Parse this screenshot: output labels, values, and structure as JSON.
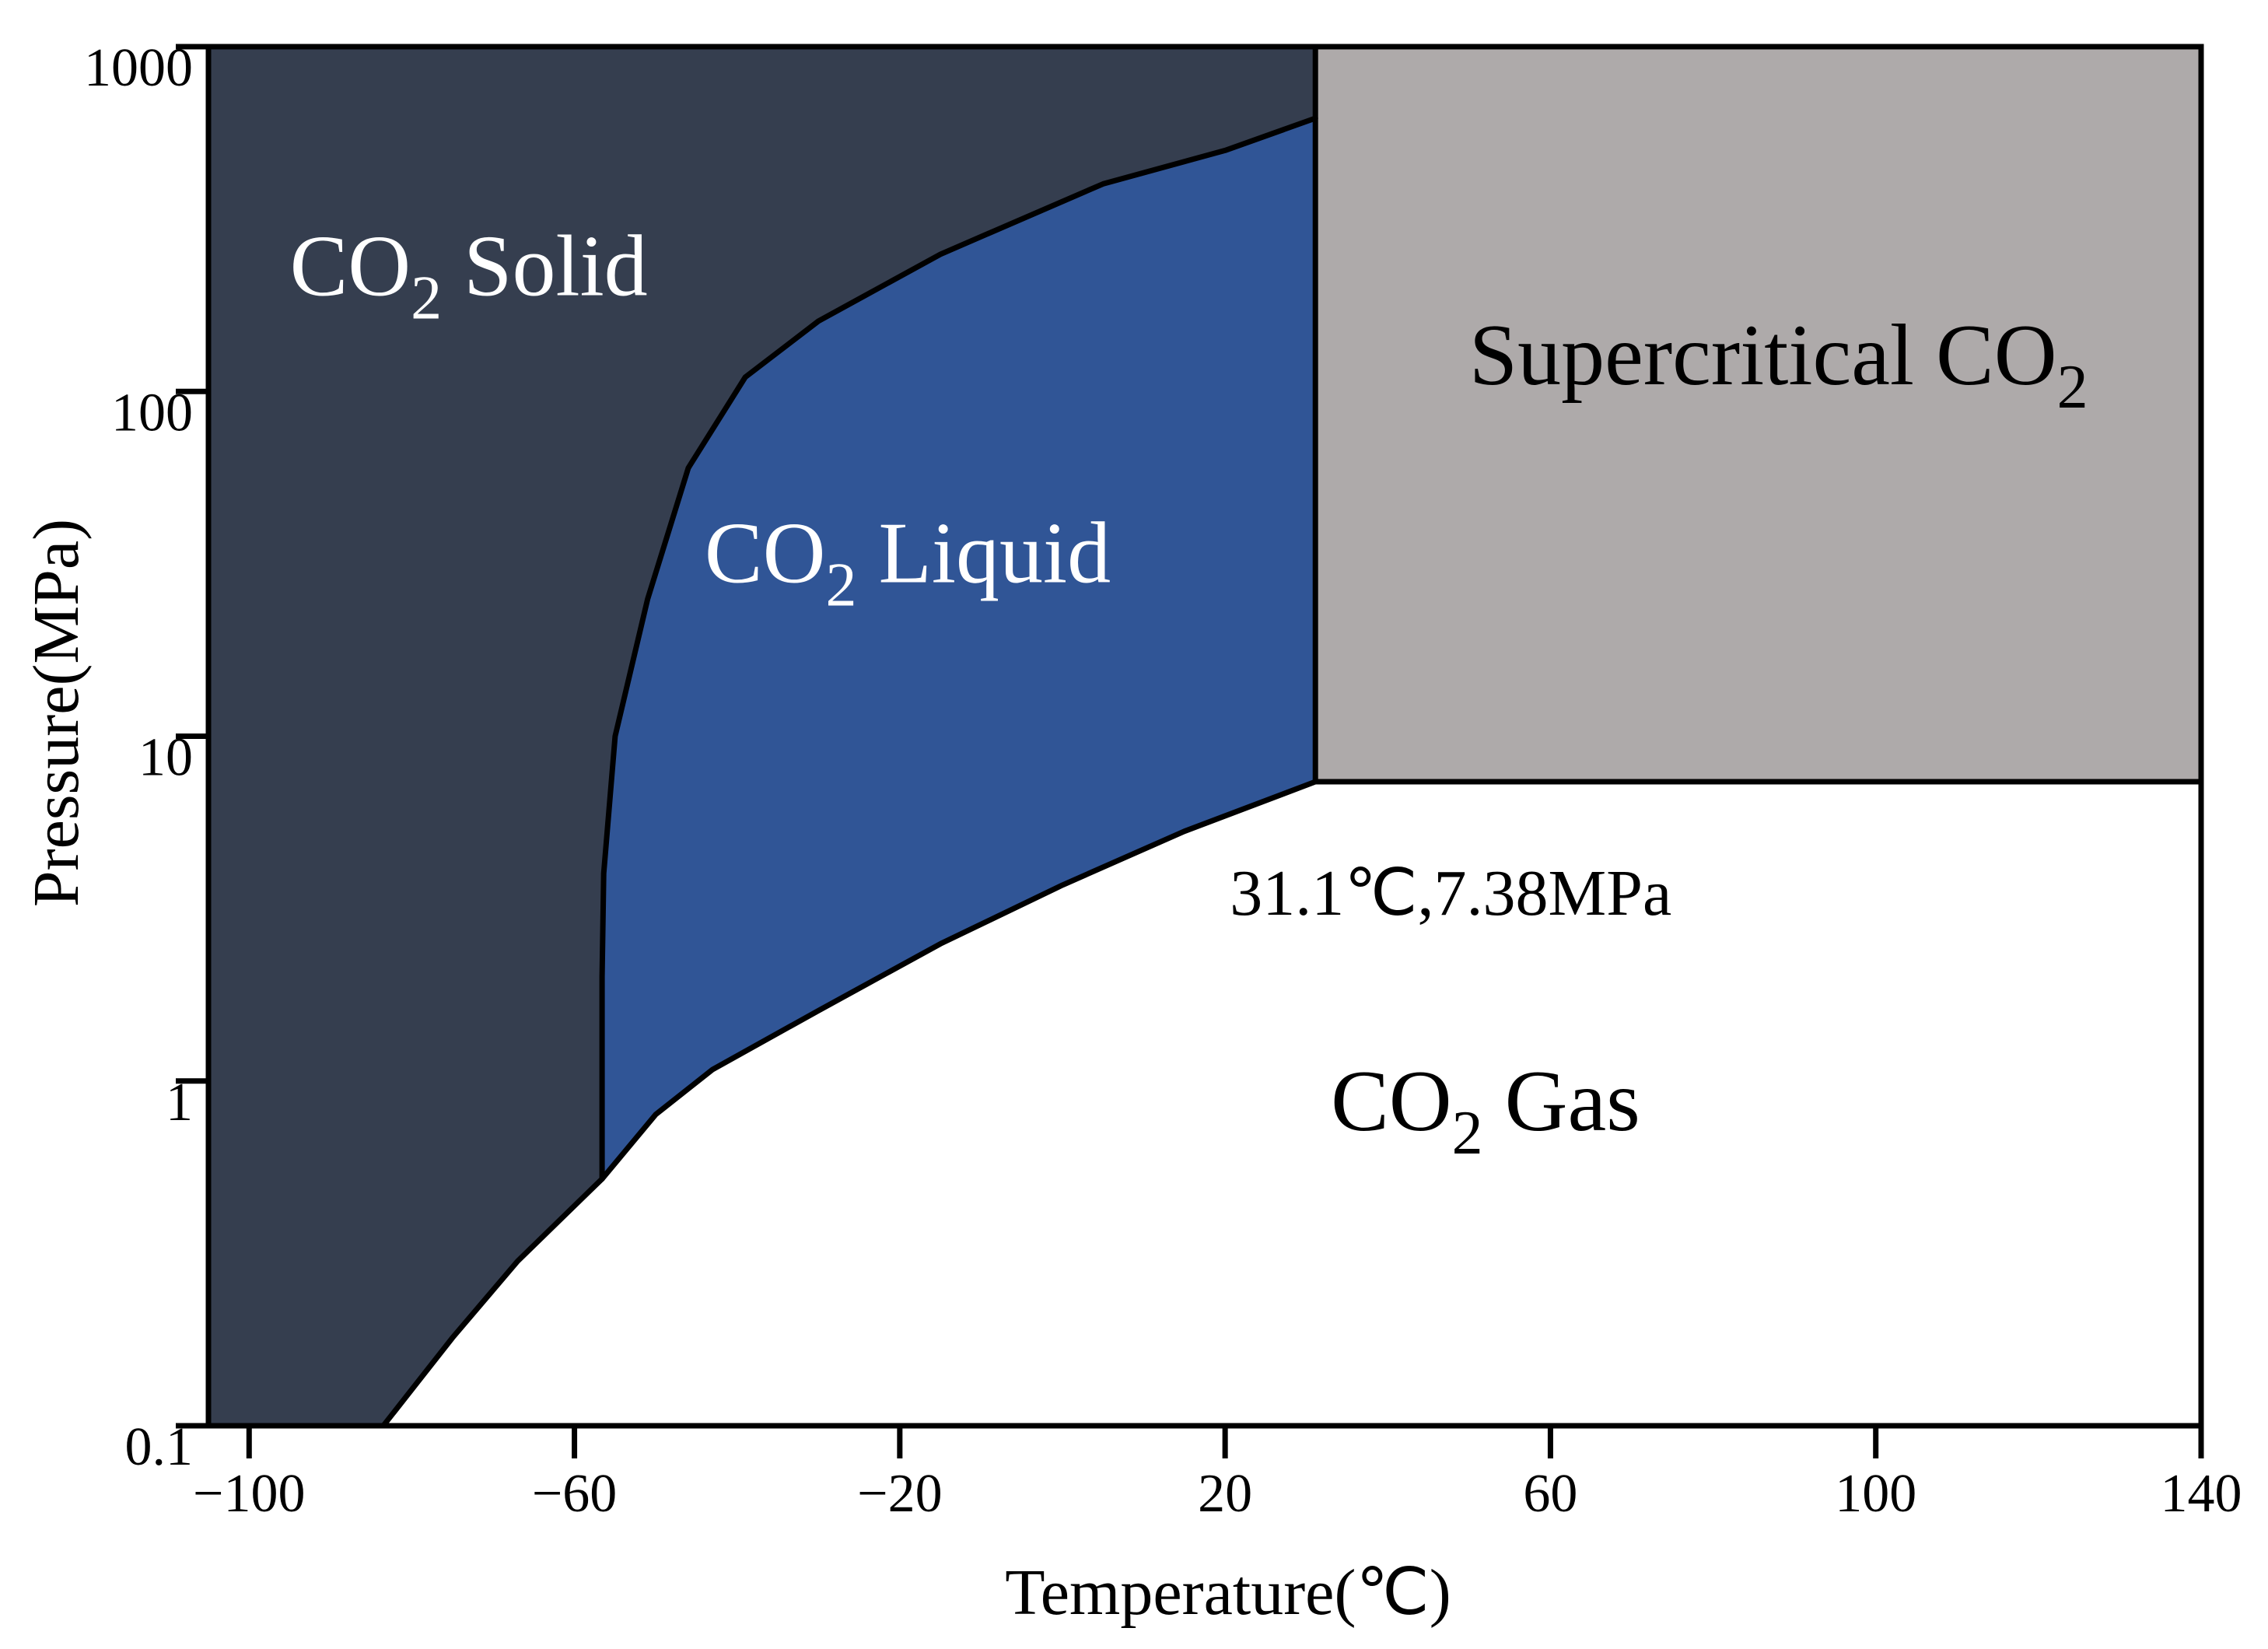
{
  "chart_data": {
    "type": "area",
    "xlabel": "Temperature(℃)",
    "ylabel": "Pressure(MPa)",
    "xlim": [
      -105,
      140
    ],
    "ylim": [
      0.1,
      1000
    ],
    "yscale": "log",
    "grid": false,
    "x_ticks": [
      {
        "value": -100,
        "label": "−100"
      },
      {
        "value": -60,
        "label": "−60"
      },
      {
        "value": -20,
        "label": "−20"
      },
      {
        "value": 20,
        "label": "20"
      },
      {
        "value": 60,
        "label": "60"
      },
      {
        "value": 100,
        "label": "100"
      },
      {
        "value": 140,
        "label": "140"
      }
    ],
    "y_ticks": [
      {
        "value": 0.1,
        "label": "0.1"
      },
      {
        "value": 1,
        "label": "1"
      },
      {
        "value": 10,
        "label": "10"
      },
      {
        "value": 100,
        "label": "100"
      },
      {
        "value": 1000,
        "label": "1000"
      }
    ],
    "colors": {
      "solid": "#353e4f",
      "liquid": "#305596",
      "supercritical": "#aeaaaa",
      "gas": "#ffffff",
      "line": "#000000"
    },
    "regions": [
      {
        "key": "solid",
        "label_main": "CO",
        "label_sub": "2",
        "label_rest": " Solid",
        "label_color": "#ffffff",
        "label_at": {
          "x": -95,
          "y": 190
        }
      },
      {
        "key": "liquid",
        "label_main": "CO",
        "label_sub": "2",
        "label_rest": " Liquid",
        "label_color": "#ffffff",
        "label_at": {
          "x": -44,
          "y": 28
        }
      },
      {
        "key": "supercritical",
        "label_main": "Supercritical CO",
        "label_sub": "2",
        "label_rest": "",
        "label_color": "#000000",
        "label_at": {
          "x": 50,
          "y": 105
        }
      },
      {
        "key": "gas",
        "label_main": "CO",
        "label_sub": "2",
        "label_rest": " Gas",
        "label_color": "#000000",
        "label_at": {
          "x": 33,
          "y": 0.72
        }
      }
    ],
    "sublimation_curve": [
      {
        "x": -83.5,
        "y": 0.1
      },
      {
        "x": -75,
        "y": 0.18
      },
      {
        "x": -67,
        "y": 0.3
      },
      {
        "x": -56.6,
        "y": 0.52
      }
    ],
    "vaporization_curve": [
      {
        "x": -56.6,
        "y": 0.52
      },
      {
        "x": -50,
        "y": 0.8
      },
      {
        "x": -43,
        "y": 1.08
      },
      {
        "x": -30,
        "y": 1.6
      },
      {
        "x": -15,
        "y": 2.5
      },
      {
        "x": 0,
        "y": 3.7
      },
      {
        "x": 15,
        "y": 5.3
      },
      {
        "x": 31.1,
        "y": 7.38
      }
    ],
    "melting_curve": [
      {
        "x": -56.6,
        "y": 0.52
      },
      {
        "x": -56.6,
        "y": 2.0
      },
      {
        "x": -56.4,
        "y": 4.0
      },
      {
        "x": -55,
        "y": 10
      },
      {
        "x": -51,
        "y": 25
      },
      {
        "x": -46,
        "y": 60
      },
      {
        "x": -39,
        "y": 110
      },
      {
        "x": -30,
        "y": 160
      },
      {
        "x": -15,
        "y": 250
      },
      {
        "x": 5,
        "y": 400
      },
      {
        "x": 20,
        "y": 500
      },
      {
        "x": 31.1,
        "y": 620
      }
    ],
    "critical_point": {
      "x": 31.1,
      "y": 7.38
    },
    "annotation": {
      "text": "31.1℃,7.38MPa",
      "at": {
        "x": 31.1,
        "y": 3.2
      }
    }
  }
}
